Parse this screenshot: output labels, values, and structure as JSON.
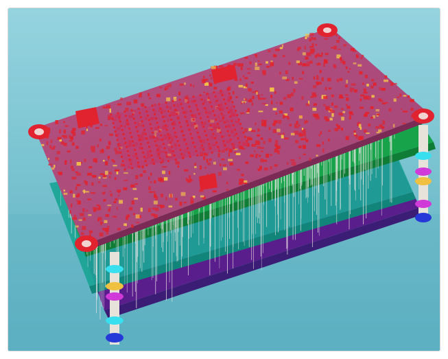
{
  "scene": {
    "subject": "pcb-layer-stack-3d-render",
    "colors": {
      "background_top": "#8fd0dc",
      "background_bottom": "#5fb3c3",
      "top_board": "#b04a7a",
      "copper": "#e0232f",
      "green_layer": "#17a34a",
      "teal_layer": "#1aa595",
      "purple_layer": "#5a1e8c",
      "via": "#f2e9e9",
      "standoff_ring_magenta": "#d03ad8",
      "standoff_ring_cyan": "#38e0ef",
      "standoff_ring_blue": "#2738d8"
    },
    "layers": [
      "top-board",
      "green-layer",
      "teal-layer",
      "purple-layer"
    ]
  }
}
